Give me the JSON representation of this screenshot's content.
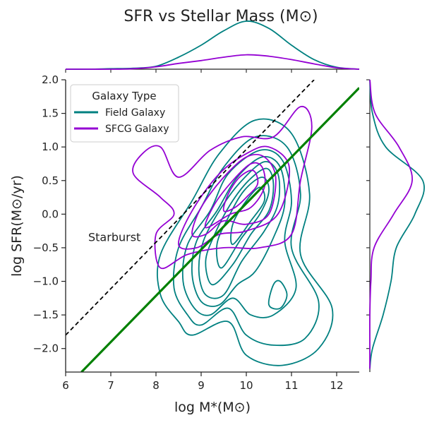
{
  "colors": {
    "field": "#008080",
    "sfcg": "#9400D3",
    "fit": "#008000",
    "starburst": "#000000",
    "axis": "#222222"
  },
  "chart_data": {
    "type": "scatter",
    "subtype": "kde-jointplot",
    "title": "SFR vs Stellar Mass (M⊙)",
    "xlabel": "log M*(M⊙)",
    "ylabel": "log SFR(M⊙/yr)",
    "xlim": [
      6.0,
      12.5
    ],
    "ylim": [
      -2.35,
      2.0
    ],
    "xticks": [
      6,
      7,
      8,
      9,
      10,
      11,
      12
    ],
    "xtick_labels": [
      "6",
      "7",
      "8",
      "9",
      "10",
      "11",
      "12"
    ],
    "yticks": [
      -2.0,
      -1.5,
      -1.0,
      -0.5,
      0.0,
      0.5,
      1.0,
      1.5,
      2.0
    ],
    "ytick_labels": [
      "−2.0",
      "−1.5",
      "−1.0",
      "−0.5",
      "0.0",
      "0.5",
      "1.0",
      "1.5",
      "2.0"
    ],
    "grid": false,
    "legend": {
      "title": "Galaxy Type",
      "position": "top-left",
      "entries": [
        "Field Galaxy",
        "SFCG Galaxy"
      ]
    },
    "annotation": {
      "text": "Starburst",
      "x": 6.5,
      "y": -0.4
    },
    "lines": [
      {
        "kind": "starburst-boundary",
        "style": "dashed",
        "points": [
          [
            6.0,
            -1.8
          ],
          [
            11.5,
            2.0
          ]
        ]
      },
      {
        "kind": "main-sequence-fit",
        "style": "solid",
        "points": [
          [
            6.35,
            -2.35
          ],
          [
            12.5,
            1.88
          ]
        ]
      }
    ],
    "series": [
      {
        "name": "Field Galaxy",
        "contours": [
          [
            [
              8.5,
              -1.6
            ],
            [
              8.1,
              -1.2
            ],
            [
              8.1,
              -0.6
            ],
            [
              8.8,
              0.2
            ],
            [
              9.4,
              0.9
            ],
            [
              10.2,
              1.4
            ],
            [
              11.0,
              1.2
            ],
            [
              11.4,
              0.3
            ],
            [
              11.2,
              -0.6
            ],
            [
              11.9,
              -1.4
            ],
            [
              11.6,
              -2.0
            ],
            [
              10.8,
              -2.25
            ],
            [
              10.0,
              -2.1
            ],
            [
              9.6,
              -1.6
            ],
            [
              8.8,
              -1.8
            ]
          ],
          [
            [
              8.7,
              -1.5
            ],
            [
              8.4,
              -1.1
            ],
            [
              8.5,
              -0.5
            ],
            [
              9.0,
              0.1
            ],
            [
              9.5,
              0.7
            ],
            [
              10.2,
              1.15
            ],
            [
              10.9,
              1.0
            ],
            [
              11.2,
              0.3
            ],
            [
              11.0,
              -0.5
            ],
            [
              11.6,
              -1.3
            ],
            [
              11.3,
              -1.85
            ],
            [
              10.6,
              -1.95
            ],
            [
              10.0,
              -1.8
            ],
            [
              9.6,
              -1.4
            ],
            [
              9.0,
              -1.65
            ]
          ],
          [
            [
              8.85,
              -1.4
            ],
            [
              8.6,
              -1.0
            ],
            [
              8.7,
              -0.45
            ],
            [
              9.2,
              0.05
            ],
            [
              9.6,
              0.6
            ],
            [
              10.3,
              0.95
            ],
            [
              10.8,
              0.8
            ],
            [
              11.0,
              0.2
            ],
            [
              10.85,
              -0.4
            ],
            [
              11.1,
              -1.1
            ],
            [
              10.6,
              -1.5
            ],
            [
              10.1,
              -1.5
            ],
            [
              9.7,
              -1.25
            ],
            [
              9.2,
              -1.5
            ]
          ],
          [
            [
              9.0,
              -1.3
            ],
            [
              8.8,
              -0.9
            ],
            [
              8.9,
              -0.4
            ],
            [
              9.35,
              0.05
            ],
            [
              9.8,
              0.55
            ],
            [
              10.35,
              0.85
            ],
            [
              10.75,
              0.7
            ],
            [
              10.85,
              0.15
            ],
            [
              10.6,
              -0.35
            ],
            [
              10.2,
              -0.85
            ],
            [
              9.8,
              -1.05
            ],
            [
              9.4,
              -1.35
            ]
          ],
          [
            [
              9.1,
              -1.2
            ],
            [
              8.95,
              -0.85
            ],
            [
              9.05,
              -0.4
            ],
            [
              9.45,
              0.1
            ],
            [
              9.9,
              0.5
            ],
            [
              10.4,
              0.78
            ],
            [
              10.7,
              0.6
            ],
            [
              10.7,
              0.15
            ],
            [
              10.4,
              -0.25
            ],
            [
              9.9,
              -0.7
            ],
            [
              9.5,
              -1.2
            ]
          ],
          [
            [
              9.25,
              -1.05
            ],
            [
              9.1,
              -0.7
            ],
            [
              9.3,
              -0.3
            ],
            [
              9.65,
              0.15
            ],
            [
              10.05,
              0.5
            ],
            [
              10.45,
              0.68
            ],
            [
              10.6,
              0.45
            ],
            [
              10.5,
              0.05
            ],
            [
              10.1,
              -0.3
            ],
            [
              9.7,
              -0.75
            ]
          ],
          [
            [
              9.45,
              -0.8
            ],
            [
              9.35,
              -0.45
            ],
            [
              9.6,
              -0.05
            ],
            [
              9.95,
              0.35
            ],
            [
              10.35,
              0.55
            ],
            [
              10.5,
              0.35
            ],
            [
              10.3,
              0.0
            ],
            [
              9.9,
              -0.35
            ]
          ],
          [
            [
              9.7,
              -0.45
            ],
            [
              9.7,
              -0.15
            ],
            [
              10.0,
              0.2
            ],
            [
              10.3,
              0.4
            ],
            [
              10.4,
              0.2
            ],
            [
              10.1,
              -0.1
            ]
          ],
          [
            [
              10.6,
              -1.05
            ],
            [
              10.5,
              -1.35
            ],
            [
              10.75,
              -1.4
            ],
            [
              10.9,
              -1.2
            ],
            [
              10.75,
              -1.0
            ]
          ]
        ]
      },
      {
        "name": "SFCG Galaxy",
        "contours": [
          [
            [
              7.5,
              0.6
            ],
            [
              7.7,
              0.9
            ],
            [
              8.1,
              1.0
            ],
            [
              8.5,
              0.55
            ],
            [
              9.2,
              0.95
            ],
            [
              9.9,
              1.15
            ],
            [
              10.6,
              1.15
            ],
            [
              11.2,
              1.6
            ],
            [
              11.45,
              1.3
            ],
            [
              11.2,
              0.5
            ],
            [
              11.0,
              -0.3
            ],
            [
              10.3,
              -0.5
            ],
            [
              9.5,
              -0.5
            ],
            [
              8.7,
              -0.6
            ],
            [
              8.1,
              -0.8
            ],
            [
              8.0,
              -0.3
            ],
            [
              8.4,
              0.0
            ],
            [
              8.1,
              0.25
            ]
          ],
          [
            [
              8.5,
              -0.45
            ],
            [
              8.8,
              0.05
            ],
            [
              9.4,
              0.6
            ],
            [
              10.0,
              0.9
            ],
            [
              10.5,
              1.0
            ],
            [
              10.95,
              0.7
            ],
            [
              10.7,
              0.0
            ],
            [
              10.0,
              -0.25
            ],
            [
              9.4,
              -0.3
            ],
            [
              8.9,
              -0.5
            ]
          ],
          [
            [
              8.8,
              -0.3
            ],
            [
              9.0,
              0.1
            ],
            [
              9.5,
              0.55
            ],
            [
              10.0,
              0.85
            ],
            [
              10.4,
              0.85
            ],
            [
              10.65,
              0.55
            ],
            [
              10.5,
              0.0
            ],
            [
              10.0,
              -0.15
            ],
            [
              9.5,
              -0.1
            ],
            [
              9.1,
              -0.3
            ]
          ],
          [
            [
              9.1,
              -0.2
            ],
            [
              9.3,
              0.15
            ],
            [
              9.7,
              0.5
            ],
            [
              10.1,
              0.75
            ],
            [
              10.35,
              0.7
            ],
            [
              10.4,
              0.4
            ],
            [
              10.1,
              0.1
            ],
            [
              9.65,
              0.0
            ]
          ],
          [
            [
              9.5,
              0.05
            ],
            [
              9.6,
              0.3
            ],
            [
              9.85,
              0.55
            ],
            [
              10.15,
              0.65
            ],
            [
              10.25,
              0.45
            ],
            [
              10.0,
              0.25
            ],
            [
              9.75,
              0.1
            ]
          ]
        ]
      }
    ],
    "marginal_x": {
      "x": [
        6.0,
        6.5,
        7.0,
        7.5,
        8.0,
        8.5,
        9.0,
        9.5,
        10.0,
        10.5,
        11.0,
        11.5,
        12.0,
        12.5
      ],
      "series": [
        {
          "name": "Field Galaxy",
          "values": [
            0.0,
            0.0,
            0.01,
            0.02,
            0.06,
            0.25,
            0.5,
            0.8,
            1.0,
            0.85,
            0.5,
            0.2,
            0.04,
            0.0
          ]
        },
        {
          "name": "SFCG Galaxy",
          "values": [
            0.0,
            0.0,
            0.0,
            0.01,
            0.05,
            0.12,
            0.18,
            0.25,
            0.3,
            0.27,
            0.2,
            0.11,
            0.03,
            0.0
          ]
        }
      ]
    },
    "marginal_y": {
      "y": [
        -2.3,
        -2.0,
        -1.5,
        -1.0,
        -0.5,
        0.0,
        0.5,
        1.0,
        1.5,
        2.0
      ],
      "series": [
        {
          "name": "Field Galaxy",
          "values": [
            0.0,
            0.05,
            0.25,
            0.4,
            0.5,
            0.85,
            1.0,
            0.3,
            0.05,
            0.0
          ]
        },
        {
          "name": "SFCG Galaxy",
          "values": [
            0.0,
            0.0,
            0.0,
            0.02,
            0.08,
            0.45,
            0.8,
            0.55,
            0.1,
            0.0
          ]
        }
      ]
    }
  }
}
